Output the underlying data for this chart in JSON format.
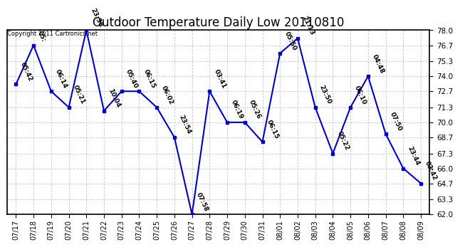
{
  "title": "Outdoor Temperature Daily Low 20110810",
  "copyright": "Copyright 2011 Cartronics.net",
  "dates": [
    "07/17",
    "07/18",
    "07/19",
    "07/20",
    "07/21",
    "07/22",
    "07/23",
    "07/24",
    "07/25",
    "07/26",
    "07/27",
    "07/28",
    "07/29",
    "07/30",
    "07/31",
    "08/01",
    "08/02",
    "08/03",
    "08/04",
    "08/05",
    "08/06",
    "08/07",
    "08/08",
    "08/09"
  ],
  "values": [
    73.3,
    76.7,
    72.7,
    71.3,
    78.0,
    71.0,
    72.7,
    72.7,
    71.3,
    68.7,
    62.0,
    72.7,
    70.0,
    70.0,
    68.3,
    76.0,
    77.3,
    71.3,
    67.3,
    71.3,
    74.0,
    69.0,
    66.0,
    64.7
  ],
  "times": [
    "05:42",
    "05:",
    "06:14",
    "05:21",
    "23:38",
    "10:04",
    "05:40",
    "06:15",
    "06:02",
    "23:54",
    "07:58",
    "03:41",
    "06:19",
    "05:26",
    "06:15",
    "05:50",
    "21:13",
    "23:50",
    "05:22",
    "06:10",
    "04:48",
    "07:50",
    "23:44",
    "03:42"
  ],
  "line_color": "#0000cc",
  "marker_color": "#0000cc",
  "bg_color": "#ffffff",
  "grid_color": "#c8c8c8",
  "ylim": [
    62.0,
    78.0
  ],
  "yticks": [
    62.0,
    63.3,
    64.7,
    66.0,
    67.3,
    68.7,
    70.0,
    71.3,
    72.7,
    74.0,
    75.3,
    76.7,
    78.0
  ],
  "title_fontsize": 12,
  "annotation_fontsize": 6.5,
  "copyright_fontsize": 6
}
